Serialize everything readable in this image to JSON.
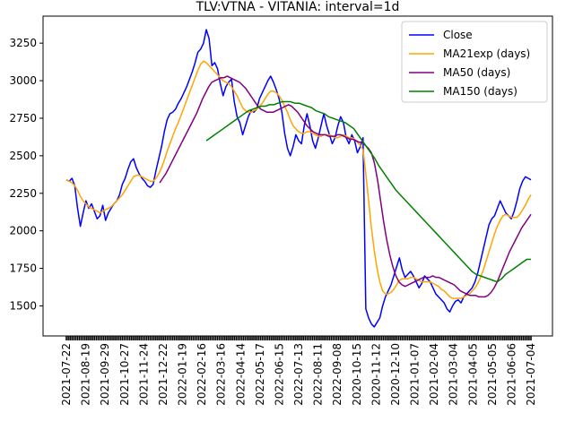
{
  "chart_data": {
    "type": "line",
    "title": "TLV:VTNA - VITANIA: interval=1d",
    "xlabel": "",
    "ylabel": "",
    "ylim": [
      1300,
      3430
    ],
    "yticks": [
      1500,
      1750,
      2000,
      2250,
      2500,
      2750,
      3000,
      3250
    ],
    "x_tick_labels": [
      "2021-07-22",
      "2021-08-19",
      "2021-09-29",
      "2021-10-27",
      "2021-11-24",
      "2021-12-22",
      "2022-01-19",
      "2022-02-16",
      "2022-03-16",
      "2022-04-14",
      "2022-05-17",
      "2022-06-15",
      "2022-07-13",
      "2022-08-11",
      "2022-09-08",
      "2020-10-15",
      "2020-11-12",
      "2020-12-10",
      "2021-01-07",
      "2021-02-04",
      "2021-03-04",
      "2021-04-05",
      "2021-05-05",
      "2021-06-06",
      "2021-07-04"
    ],
    "grid": false,
    "legend_position": "top-right",
    "n_points": 250,
    "series": [
      {
        "name": "Close",
        "color": "#0000ff",
        "start_index": 0,
        "values": [
          2340,
          2330,
          2350,
          2300,
          2150,
          2030,
          2120,
          2200,
          2150,
          2180,
          2130,
          2080,
          2100,
          2170,
          2070,
          2120,
          2150,
          2180,
          2200,
          2240,
          2310,
          2350,
          2410,
          2460,
          2480,
          2420,
          2380,
          2350,
          2330,
          2300,
          2290,
          2310,
          2400,
          2480,
          2560,
          2660,
          2740,
          2780,
          2790,
          2810,
          2850,
          2880,
          2920,
          2960,
          3010,
          3060,
          3120,
          3190,
          3210,
          3250,
          3340,
          3280,
          3100,
          3120,
          3080,
          2980,
          2900,
          2960,
          2990,
          3010,
          2860,
          2760,
          2720,
          2640,
          2700,
          2760,
          2800,
          2790,
          2810,
          2880,
          2920,
          2960,
          3000,
          3030,
          2990,
          2940,
          2880,
          2790,
          2650,
          2550,
          2500,
          2560,
          2640,
          2600,
          2580,
          2700,
          2780,
          2700,
          2600,
          2550,
          2620,
          2700,
          2780,
          2700,
          2640,
          2580,
          2620,
          2700,
          2760,
          2720,
          2620,
          2580,
          2640,
          2600,
          2520,
          2560,
          2620,
          1480,
          1420,
          1380,
          1360,
          1390,
          1420,
          1500,
          1560,
          1600,
          1640,
          1700,
          1760,
          1820,
          1740,
          1690,
          1710,
          1730,
          1700,
          1660,
          1620,
          1650,
          1700,
          1680,
          1660,
          1620,
          1580,
          1560,
          1540,
          1520,
          1480,
          1460,
          1500,
          1530,
          1540,
          1520,
          1560,
          1580,
          1600,
          1620,
          1660,
          1720,
          1800,
          1880,
          1960,
          2040,
          2080,
          2100,
          2150,
          2200,
          2160,
          2120,
          2100,
          2080,
          2130,
          2200,
          2280,
          2330,
          2360,
          2350,
          2340
        ]
      },
      {
        "name": "MA21exp (days)",
        "color": "#ffa500",
        "start_index": 0,
        "values": [
          2340,
          2330,
          2320,
          2300,
          2270,
          2230,
          2200,
          2180,
          2160,
          2150,
          2140,
          2130,
          2120,
          2130,
          2140,
          2150,
          2160,
          2180,
          2200,
          2220,
          2240,
          2270,
          2300,
          2330,
          2360,
          2370,
          2370,
          2360,
          2350,
          2340,
          2330,
          2330,
          2350,
          2380,
          2420,
          2470,
          2530,
          2580,
          2630,
          2680,
          2720,
          2770,
          2820,
          2870,
          2920,
          2970,
          3020,
          3070,
          3110,
          3130,
          3120,
          3100,
          3080,
          3060,
          3040,
          3020,
          3000,
          2990,
          2980,
          2960,
          2930,
          2900,
          2860,
          2820,
          2800,
          2790,
          2790,
          2800,
          2810,
          2830,
          2850,
          2880,
          2910,
          2930,
          2930,
          2920,
          2900,
          2870,
          2830,
          2790,
          2740,
          2700,
          2680,
          2660,
          2650,
          2650,
          2660,
          2660,
          2650,
          2640,
          2630,
          2630,
          2640,
          2640,
          2640,
          2630,
          2620,
          2620,
          2630,
          2640,
          2630,
          2620,
          2620,
          2610,
          2590,
          2570,
          2540,
          2380,
          2200,
          2020,
          1870,
          1750,
          1660,
          1600,
          1580,
          1580,
          1590,
          1610,
          1640,
          1670,
          1680,
          1680,
          1680,
          1690,
          1690,
          1680,
          1670,
          1660,
          1660,
          1660,
          1660,
          1650,
          1640,
          1630,
          1610,
          1600,
          1580,
          1560,
          1550,
          1550,
          1550,
          1550,
          1560,
          1570,
          1580,
          1600,
          1620,
          1650,
          1690,
          1740,
          1800,
          1860,
          1920,
          1980,
          2030,
          2070,
          2100,
          2110,
          2100,
          2090,
          2090,
          2090,
          2110,
          2140,
          2170,
          2210,
          2240
        ]
      },
      {
        "name": "MA50 (days)",
        "color": "#800080",
        "start_index": 50,
        "values": [
          2320,
          2350,
          2380,
          2420,
          2460,
          2500,
          2540,
          2580,
          2620,
          2660,
          2700,
          2740,
          2780,
          2830,
          2880,
          2920,
          2960,
          2990,
          3000,
          3010,
          3020,
          3020,
          3030,
          3020,
          3010,
          3000,
          2990,
          2970,
          2950,
          2920,
          2890,
          2860,
          2830,
          2810,
          2800,
          2790,
          2790,
          2790,
          2800,
          2810,
          2820,
          2830,
          2840,
          2830,
          2810,
          2790,
          2760,
          2730,
          2700,
          2680,
          2660,
          2650,
          2640,
          2640,
          2640,
          2630,
          2630,
          2630,
          2640,
          2640,
          2630,
          2620,
          2610,
          2610,
          2600,
          2590,
          2590,
          2570,
          2550,
          2520,
          2450,
          2340,
          2200,
          2060,
          1940,
          1840,
          1760,
          1700,
          1660,
          1640,
          1630,
          1640,
          1650,
          1660,
          1670,
          1680,
          1690,
          1690,
          1690,
          1700,
          1690,
          1690,
          1680,
          1670,
          1660,
          1650,
          1640,
          1620,
          1600,
          1590,
          1580,
          1570,
          1570,
          1570,
          1560,
          1560,
          1560,
          1570,
          1590,
          1620,
          1660,
          1710,
          1760,
          1810,
          1860,
          1900,
          1940,
          1980,
          2020,
          2050,
          2080,
          2110
        ]
      },
      {
        "name": "MA150 (days)",
        "color": "#008000",
        "start_index": 75,
        "values": [
          2600,
          2620,
          2640,
          2660,
          2680,
          2700,
          2720,
          2740,
          2760,
          2780,
          2800,
          2810,
          2820,
          2830,
          2830,
          2840,
          2840,
          2850,
          2860,
          2860,
          2860,
          2850,
          2850,
          2840,
          2830,
          2820,
          2800,
          2790,
          2780,
          2760,
          2750,
          2740,
          2730,
          2720,
          2700,
          2680,
          2640,
          2600,
          2560,
          2520,
          2480,
          2430,
          2390,
          2350,
          2310,
          2270,
          2240,
          2210,
          2180,
          2150,
          2120,
          2090,
          2060,
          2030,
          2000,
          1970,
          1940,
          1910,
          1880,
          1850,
          1820,
          1790,
          1760,
          1730,
          1710,
          1700,
          1690,
          1680,
          1670,
          1660,
          1680,
          1710,
          1730,
          1750,
          1770,
          1790,
          1810,
          1810
        ]
      }
    ]
  }
}
